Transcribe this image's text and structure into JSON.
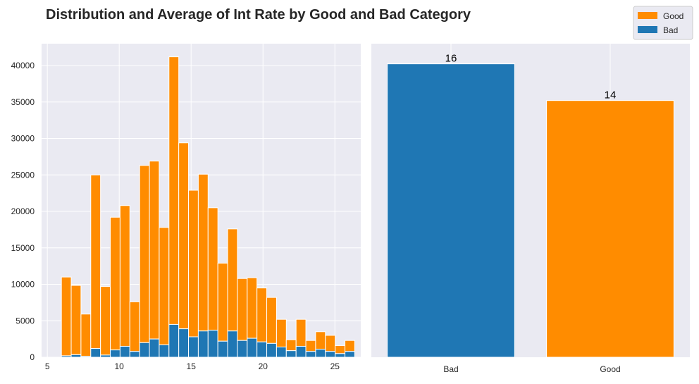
{
  "chart_title": "Distribution and Average of Int Rate by Good and Bad Category",
  "colors": {
    "good": "#FF8C00",
    "bad": "#1F77B4",
    "panel_bg": "#EAEAF2",
    "grid": "#FFFFFF"
  },
  "legend": {
    "position": "top-right",
    "items": [
      "Good",
      "Bad"
    ]
  },
  "chart_data": [
    {
      "type": "bar",
      "subtype": "stacked-histogram",
      "xlim": [
        4.6,
        26.8
      ],
      "ylim": [
        0,
        43000
      ],
      "xticks": [
        5,
        10,
        15,
        20,
        25
      ],
      "yticks": [
        0,
        5000,
        10000,
        15000,
        20000,
        25000,
        30000,
        35000,
        40000
      ],
      "grid": true,
      "bin_width": 0.68,
      "bin_left_edges": [
        5.3,
        5.98,
        6.66,
        7.34,
        8.02,
        8.7,
        9.38,
        10.06,
        10.74,
        11.42,
        12.1,
        12.78,
        13.46,
        14.14,
        14.82,
        15.5,
        16.18,
        16.86,
        17.54,
        18.22,
        18.9,
        19.58,
        20.26,
        20.94,
        21.62,
        22.3,
        22.98,
        23.66,
        24.34,
        25.02,
        25.7
      ],
      "series": [
        {
          "name": "Bad",
          "values": [
            0,
            200,
            350,
            120,
            1200,
            300,
            1000,
            1500,
            800,
            2000,
            2500,
            1700,
            4500,
            3900,
            2800,
            3600,
            3700,
            2200,
            3600,
            2300,
            2600,
            2100,
            1900,
            1400,
            900,
            1500,
            800,
            1100,
            800,
            500,
            800
          ]
        },
        {
          "name": "Good",
          "values": [
            0,
            10800,
            9500,
            5800,
            23800,
            9400,
            18200,
            19300,
            6800,
            24300,
            24400,
            16100,
            36700,
            25500,
            20100,
            21500,
            16800,
            10700,
            14000,
            8500,
            8300,
            7400,
            6300,
            3800,
            1500,
            3700,
            1500,
            2400,
            2200,
            1100,
            1500
          ]
        }
      ]
    },
    {
      "type": "bar",
      "categories": [
        "Bad",
        "Good"
      ],
      "values": [
        16,
        14
      ],
      "data_labels": [
        "16",
        "14"
      ],
      "bar_colors": [
        "#1F77B4",
        "#FF8C00"
      ],
      "ylim": [
        0,
        17.1
      ],
      "grid": true
    }
  ]
}
